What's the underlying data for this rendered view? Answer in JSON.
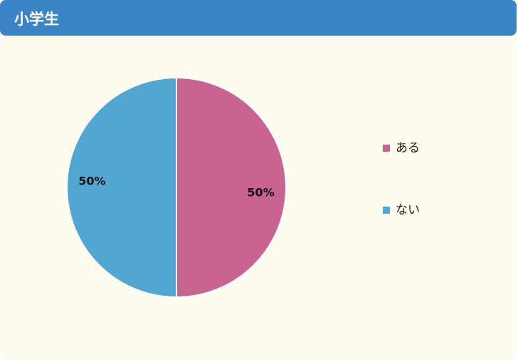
{
  "chart_data": {
    "type": "pie",
    "title": "小学生",
    "categories": [
      "ある",
      "ない"
    ],
    "values": [
      50,
      50
    ],
    "value_labels": [
      "50%",
      "50%"
    ],
    "colors": [
      "#c8648f",
      "#52a7d2"
    ],
    "legend": "right"
  }
}
